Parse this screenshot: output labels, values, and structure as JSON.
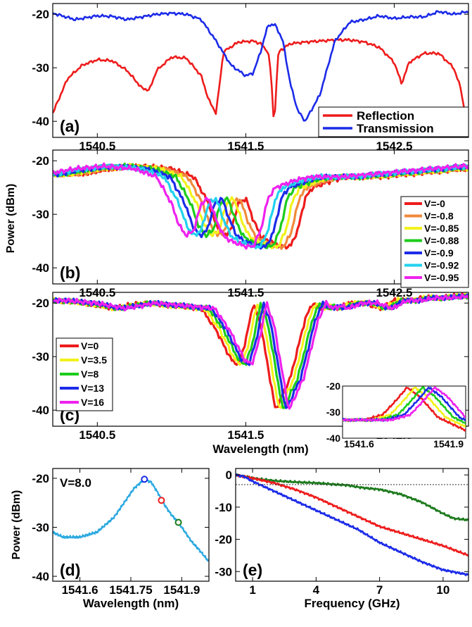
{
  "figure": {
    "ylabel_shared": "Power (dBm)"
  },
  "chart_data": [
    {
      "id": "a",
      "type": "line",
      "panel_label": "(a)",
      "xlim": [
        1540.2,
        1543.0
      ],
      "ylim": [
        -43,
        -18
      ],
      "xticks": [
        1540.5,
        1541.5,
        1542.5
      ],
      "xtick_labels": [
        "1540.5",
        "1541.5",
        "1542.5"
      ],
      "yticks": [
        -20,
        -30,
        -40
      ],
      "ytick_labels": [
        "-20",
        "-30",
        "-40"
      ],
      "legend": {
        "position": "bottom-right",
        "items": [
          "Reflection",
          "Transmission"
        ]
      },
      "series": [
        {
          "name": "Reflection",
          "color": "#ee1c1c",
          "x": [
            1540.2,
            1540.3,
            1540.4,
            1540.5,
            1540.6,
            1540.7,
            1540.8,
            1540.85,
            1540.9,
            1541.0,
            1541.1,
            1541.2,
            1541.25,
            1541.3,
            1541.35,
            1541.45,
            1541.55,
            1541.6,
            1541.65,
            1541.67,
            1541.69,
            1541.72,
            1541.8,
            1541.9,
            1542.0,
            1542.1,
            1542.2,
            1542.3,
            1542.4,
            1542.5,
            1542.55,
            1542.6,
            1542.7,
            1542.8,
            1542.9,
            1542.95,
            1543.0
          ],
          "y": [
            -38.5,
            -32,
            -29.5,
            -28.5,
            -28.7,
            -30.5,
            -33.8,
            -34.2,
            -30.5,
            -28,
            -28.2,
            -31.5,
            -36,
            -38.5,
            -27,
            -25.2,
            -25,
            -25.5,
            -27,
            -31,
            -41,
            -27,
            -25.5,
            -25.2,
            -25,
            -24.8,
            -24.8,
            -25.2,
            -26.2,
            -29,
            -33,
            -29,
            -27.3,
            -27.3,
            -30,
            -34,
            -43
          ]
        },
        {
          "name": "Transmission",
          "color": "#1c2be8",
          "x": [
            1540.2,
            1540.3,
            1540.35,
            1540.5,
            1540.6,
            1540.7,
            1540.9,
            1541.0,
            1541.1,
            1541.2,
            1541.3,
            1541.4,
            1541.5,
            1541.55,
            1541.6,
            1541.65,
            1541.7,
            1541.75,
            1541.8,
            1541.85,
            1541.9,
            1542.0,
            1542.1,
            1542.2,
            1542.3,
            1542.4,
            1542.5,
            1542.6,
            1542.7,
            1542.8,
            1542.9,
            1543.0
          ],
          "y": [
            -19.8,
            -20.6,
            -21,
            -20.3,
            -20.4,
            -21,
            -20,
            -19.8,
            -20,
            -21,
            -25,
            -29.5,
            -31.5,
            -31,
            -27,
            -22,
            -22,
            -25,
            -33,
            -38,
            -40,
            -35,
            -25,
            -21.5,
            -21,
            -20.3,
            -20.8,
            -20.5,
            -20.5,
            -19.5,
            -20,
            -19.5
          ]
        }
      ]
    },
    {
      "id": "b",
      "type": "line",
      "panel_label": "(b)",
      "xlim": [
        1540.2,
        1543.0
      ],
      "ylim": [
        -43,
        -18
      ],
      "xticks": [
        1540.5,
        1541.5,
        1542.5
      ],
      "xtick_labels": [
        "1540.5",
        "1541.5",
        "1542.5"
      ],
      "yticks": [
        -20,
        -30,
        -40
      ],
      "ytick_labels": [
        "-20",
        "-30",
        "-40"
      ],
      "ylabel": "Power (dBm)",
      "legend": {
        "position": "right",
        "items": [
          "V=-0",
          "V=-0.8",
          "V=-0.85",
          "V=-0.88",
          "V=-0.9",
          "V=-0.92",
          "V=-0.95"
        ]
      },
      "series": [
        {
          "name": "V=-0",
          "color": "#ee1c1c",
          "shift": 0.2
        },
        {
          "name": "V=-0.8",
          "color": "#f08a3c",
          "shift": 0.16
        },
        {
          "name": "V=-0.85",
          "color": "#f2f21c",
          "shift": 0.12
        },
        {
          "name": "V=-0.88",
          "color": "#1ccc1c",
          "shift": 0.08
        },
        {
          "name": "V=-0.9",
          "color": "#1c2be8",
          "shift": 0.04
        },
        {
          "name": "V=-0.92",
          "color": "#22d2ee",
          "shift": 0.0
        },
        {
          "name": "V=-0.95",
          "color": "#ee22ee",
          "shift": -0.05
        }
      ],
      "base": {
        "x": [
          1540.2,
          1540.4,
          1540.6,
          1540.8,
          1540.95,
          1541.05,
          1541.1,
          1541.15,
          1541.2,
          1541.25,
          1541.3,
          1541.35,
          1541.4,
          1541.45,
          1541.5,
          1541.55,
          1541.6,
          1541.65,
          1541.7,
          1541.75,
          1541.8,
          1541.9,
          1542.0,
          1542.2,
          1542.4,
          1542.6,
          1542.8,
          1543.0
        ],
        "y": [
          -22.5,
          -21.5,
          -21,
          -21.5,
          -23,
          -28,
          -32,
          -34,
          -33,
          -28,
          -27,
          -31,
          -34,
          -35,
          -35.5,
          -36,
          -36,
          -33,
          -27,
          -25,
          -24.5,
          -23.5,
          -23,
          -23,
          -22.5,
          -22,
          -21.5,
          -21
        ]
      }
    },
    {
      "id": "c",
      "type": "line",
      "panel_label": "(c)",
      "xlim": [
        1540.2,
        1543.0
      ],
      "ylim": [
        -43,
        -18
      ],
      "xticks": [
        1540.5,
        1541.5,
        1542.5
      ],
      "xtick_labels": [
        "1540.5",
        "1541.5",
        "1542.5"
      ],
      "yticks": [
        -20,
        -30,
        -40
      ],
      "ytick_labels": [
        "-20",
        "-30",
        "-40"
      ],
      "xlabel": "Wavelength (nm)",
      "legend": {
        "position": "left",
        "items": [
          "V=0",
          "V=3.5",
          "V=8",
          "V=13",
          "V=16"
        ]
      },
      "series": [
        {
          "name": "V=0",
          "color": "#ee1c1c",
          "shift": 0.0
        },
        {
          "name": "V=3.5",
          "color": "#f2f21c",
          "shift": 0.025
        },
        {
          "name": "V=8",
          "color": "#1ccc1c",
          "shift": 0.05
        },
        {
          "name": "V=13",
          "color": "#1c2be8",
          "shift": 0.07
        },
        {
          "name": "V=16",
          "color": "#ee22ee",
          "shift": 0.09
        }
      ],
      "base": {
        "x": [
          1540.2,
          1540.4,
          1540.6,
          1540.8,
          1541.0,
          1541.2,
          1541.3,
          1541.4,
          1541.45,
          1541.5,
          1541.55,
          1541.6,
          1541.65,
          1541.7,
          1541.8,
          1541.9,
          1541.95,
          1542.0,
          1542.05,
          1542.1,
          1542.2,
          1542.3,
          1542.4,
          1542.5,
          1542.6,
          1542.7,
          1542.8,
          1543.0
        ],
        "y": [
          -19.5,
          -20,
          -21,
          -20,
          -20.5,
          -21,
          -25,
          -30.5,
          -31.5,
          -27,
          -20,
          -24,
          -32,
          -40,
          -34,
          -23,
          -20,
          -21,
          -20.5,
          -21,
          -20,
          -20,
          -21,
          -19.5,
          -19.5,
          -19,
          -19,
          -18.5
        ]
      },
      "inset": {
        "xlim": [
          1541.55,
          1541.95
        ],
        "ylim": [
          -40,
          -20
        ],
        "xtick_labels": [
          "1541.6",
          "1541.9"
        ],
        "ytick_labels": [
          "-20",
          "-30",
          "-40"
        ]
      }
    },
    {
      "id": "d",
      "type": "line",
      "panel_label": "(d)",
      "annotation": "V=8.0",
      "xlim": [
        1541.52,
        1541.98
      ],
      "ylim": [
        -41,
        -18
      ],
      "xticks": [
        1541.6,
        1541.75,
        1541.9
      ],
      "xtick_labels": [
        "1541.6",
        "1541.75",
        "1541.9"
      ],
      "yticks": [
        -20,
        -30,
        -40
      ],
      "ytick_labels": [
        "-20",
        "-30",
        "-40"
      ],
      "xlabel": "Wavelength (nm)",
      "ylabel": "Power (dBm)",
      "series": [
        {
          "color": "#2aa9e0",
          "x": [
            1541.52,
            1541.55,
            1541.6,
            1541.65,
            1541.7,
            1541.73,
            1541.76,
            1541.79,
            1541.81,
            1541.83,
            1541.85,
            1541.87,
            1541.89,
            1541.91,
            1541.93,
            1541.95,
            1541.98
          ],
          "y": [
            -31,
            -32,
            -32,
            -31,
            -28,
            -25,
            -22,
            -20.2,
            -20.8,
            -23,
            -25.5,
            -27.5,
            -29,
            -31,
            -33,
            -34.5,
            -37
          ]
        }
      ],
      "markers": [
        {
          "x": 1541.79,
          "y": -20.2,
          "color": "#1c2be8"
        },
        {
          "x": 1541.84,
          "y": -24.5,
          "color": "#ee1c1c"
        },
        {
          "x": 1541.89,
          "y": -29,
          "color": "#1c7a1c"
        }
      ]
    },
    {
      "id": "e",
      "type": "line",
      "panel_label": "(e)",
      "xlim": [
        0.2,
        11.2
      ],
      "ylim": [
        -33,
        2
      ],
      "xticks": [
        1,
        4,
        7,
        10
      ],
      "xtick_labels": [
        "1",
        "4",
        "7",
        "10"
      ],
      "yticks": [
        0,
        -10,
        -20,
        -30
      ],
      "ytick_labels": [
        "0",
        "-10",
        "-20",
        "-30"
      ],
      "xlabel": "Frequency (GHz)",
      "reference_line": -3,
      "series": [
        {
          "color": "#1c7a1c",
          "x": [
            0.2,
            1,
            2,
            3,
            4,
            5,
            5.5,
            6,
            6.5,
            7,
            8,
            9,
            10,
            10.5,
            11.2
          ],
          "y": [
            0,
            -1,
            -1.8,
            -2.2,
            -2.5,
            -3,
            -3.2,
            -3.8,
            -4.2,
            -4.5,
            -6,
            -8.5,
            -12,
            -13.5,
            -14
          ]
        },
        {
          "color": "#ee1c1c",
          "x": [
            0.2,
            1,
            2,
            3,
            4,
            5,
            6,
            7,
            8,
            9,
            10,
            11.2
          ],
          "y": [
            0,
            -1,
            -2.5,
            -4.5,
            -7,
            -10,
            -13,
            -16,
            -18,
            -20,
            -22,
            -25
          ]
        },
        {
          "color": "#1c2be8",
          "x": [
            0.2,
            0.6,
            1,
            2,
            3,
            4,
            5,
            6,
            7,
            8,
            9,
            10,
            11.2
          ],
          "y": [
            0,
            -0.5,
            -2,
            -5,
            -8,
            -11,
            -14,
            -17,
            -21,
            -24,
            -27,
            -29.5,
            -31
          ]
        }
      ]
    }
  ]
}
